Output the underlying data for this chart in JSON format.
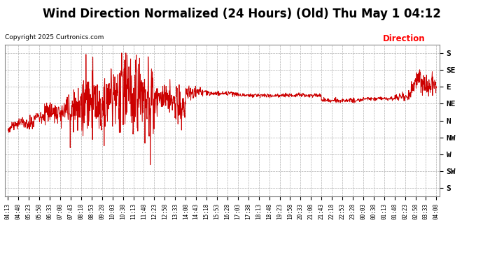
{
  "title": "Wind Direction Normalized (24 Hours) (Old) Thu May 1 04:12",
  "copyright": "Copyright 2025 Curtronics.com",
  "legend_label": "Direction",
  "legend_color": "#ff0000",
  "line_color": "#cc0000",
  "background_color": "#ffffff",
  "grid_color": "#b0b0b0",
  "ytick_labels": [
    "S",
    "SE",
    "E",
    "NE",
    "N",
    "NW",
    "W",
    "SW",
    "S"
  ],
  "ytick_values": [
    0,
    1,
    2,
    3,
    4,
    5,
    6,
    7,
    8
  ],
  "ylim": [
    -0.5,
    8.5
  ],
  "title_fontsize": 12,
  "xtick_labels": [
    "04:13",
    "04:48",
    "05:23",
    "05:58",
    "06:33",
    "07:08",
    "07:43",
    "08:18",
    "08:53",
    "09:28",
    "10:03",
    "10:38",
    "11:13",
    "11:48",
    "12:23",
    "12:58",
    "13:33",
    "14:08",
    "14:43",
    "15:18",
    "15:53",
    "16:28",
    "17:03",
    "17:38",
    "18:13",
    "18:48",
    "19:23",
    "19:58",
    "20:33",
    "21:08",
    "21:43",
    "22:18",
    "22:53",
    "23:28",
    "00:03",
    "00:38",
    "01:13",
    "01:48",
    "02:23",
    "02:58",
    "03:33",
    "04:08"
  ]
}
